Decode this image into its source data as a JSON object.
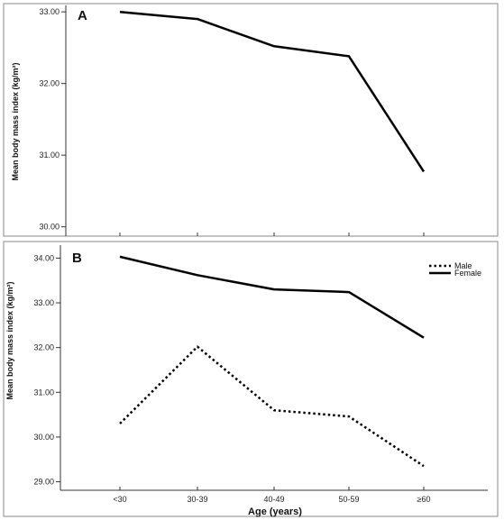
{
  "chart_data": [
    {
      "type": "line",
      "panel_label": "A",
      "categories": [
        "<30",
        "30-39",
        "40-49",
        "50-59",
        "≥60"
      ],
      "series": [
        {
          "values": [
            33.0,
            32.9,
            32.52,
            32.38,
            30.77
          ],
          "style": "solid"
        }
      ],
      "ylabel": "Mean body mass index (kg/m²)",
      "yticks": [
        "33.00",
        "32.00",
        "31.00",
        "30.00"
      ],
      "ylim": [
        29.87,
        33.09
      ],
      "grid": false
    },
    {
      "type": "line",
      "panel_label": "B",
      "categories": [
        "<30",
        "30-39",
        "40-49",
        "50-59",
        "≥60"
      ],
      "series": [
        {
          "name": "Male",
          "values": [
            30.3,
            32.02,
            30.6,
            30.46,
            29.35
          ],
          "style": "dotted"
        },
        {
          "name": "Female",
          "values": [
            34.03,
            33.62,
            33.3,
            33.24,
            32.22
          ],
          "style": "solid"
        }
      ],
      "legend": {
        "position": "top-right",
        "labels": [
          "Male",
          "Female"
        ]
      },
      "ylabel": "Mean body mass index (kg/m²)",
      "xlabel": "Age (years)",
      "yticks": [
        "34.00",
        "33.00",
        "32.00",
        "31.00",
        "30.00",
        "29.00"
      ],
      "ylim": [
        28.81,
        34.29
      ],
      "grid": false
    }
  ],
  "colors": {
    "line": "#000000",
    "axis": "#333333",
    "border": "#555555"
  }
}
